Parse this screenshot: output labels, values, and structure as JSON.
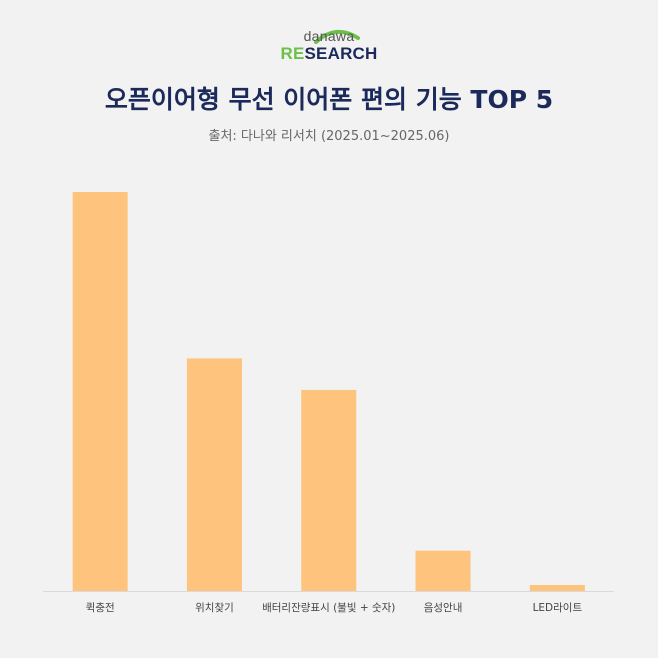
{
  "header": {
    "logo_top": "danawa",
    "logo_bottom_a": "RE",
    "logo_bottom_b": "SEARCH",
    "title": "오픈이어형 무선 이어폰 편의 기능 TOP 5",
    "subtitle": "출처: 다나와 리서치 (2025.01~2025.06)"
  },
  "colors": {
    "bar": "#fec37c",
    "axis": "#d9d9d9",
    "title": "#1b2a5a",
    "logo_green": "#6cc04a"
  },
  "chart_data": {
    "type": "bar",
    "title": "오픈이어형 무선 이어폰 편의 기능 TOP 5",
    "subtitle": "출처: 다나와 리서치 (2025.01~2025.06)",
    "categories": [
      "퀵충전",
      "위치찾기",
      "배터리잔량표시 (불빛 + 숫자)",
      "음성안내",
      "LED라이트"
    ],
    "values": [
      100,
      58.3,
      50.4,
      10.1,
      1.5
    ],
    "ylim": [
      0,
      100
    ],
    "grid": false,
    "legend": "none",
    "y_axis_shown": false
  }
}
